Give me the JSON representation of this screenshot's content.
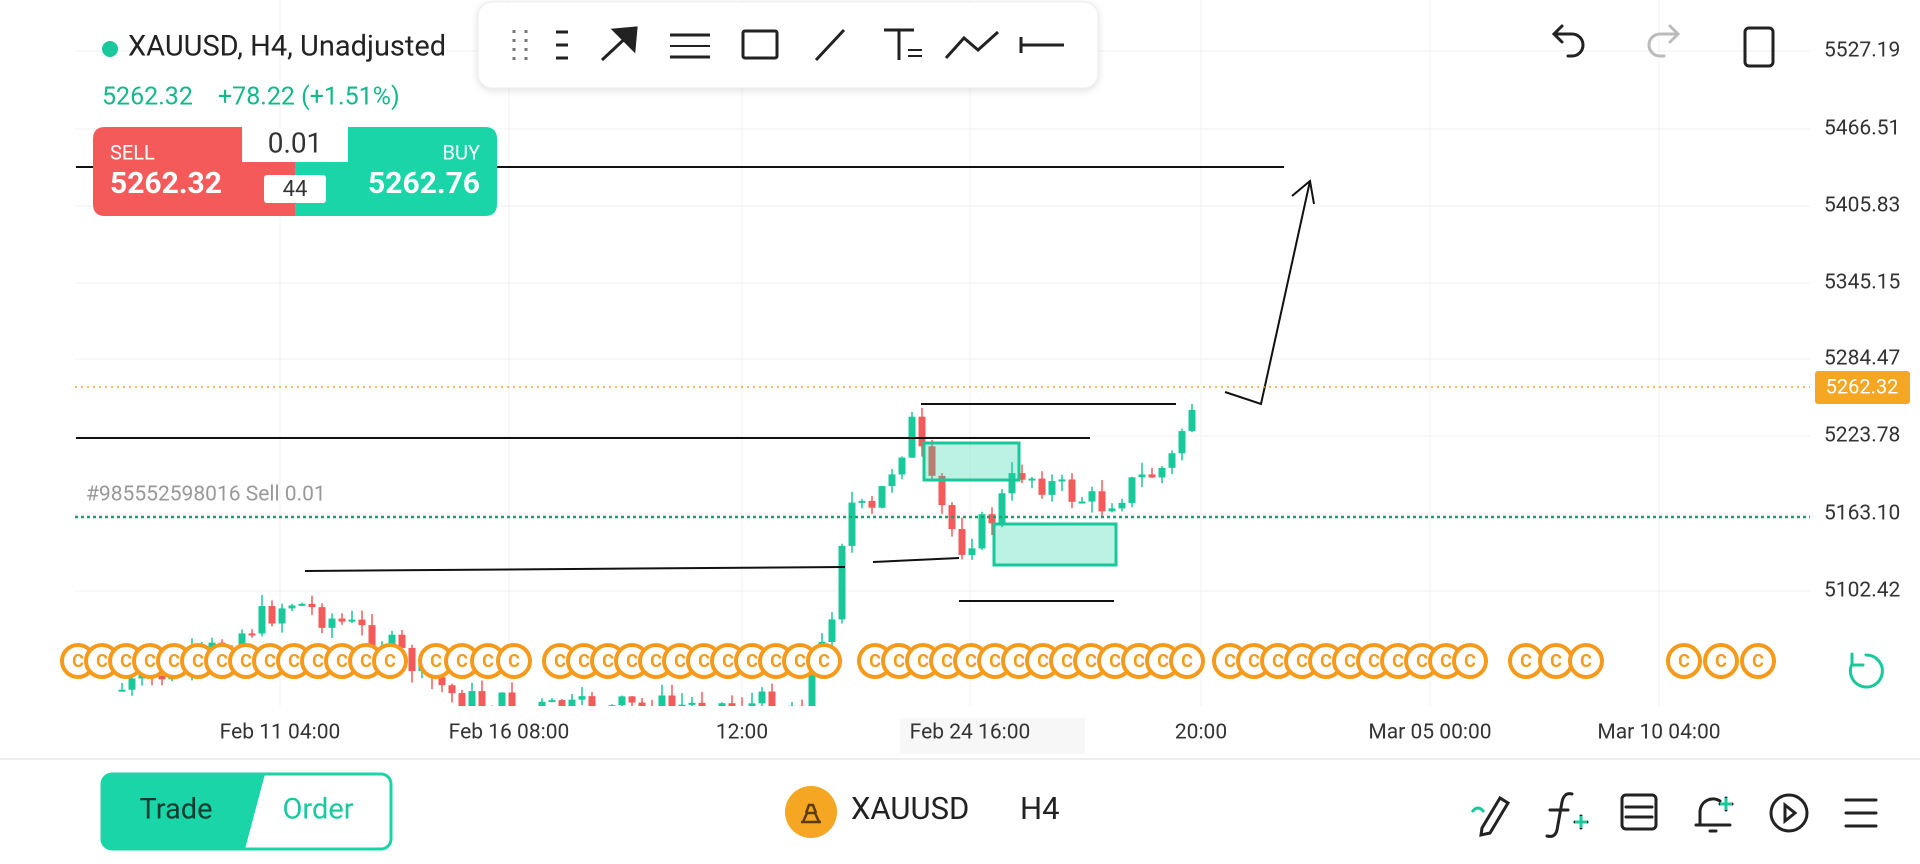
{
  "header": {
    "symbol_title": "XAUUSD, H4, Unadjusted",
    "last_price": "5262.32",
    "change": "+78.22 (+1.51%)"
  },
  "trade_panel": {
    "sell_label": "SELL",
    "sell_price": "5262.32",
    "buy_label": "BUY",
    "buy_price": "5262.76",
    "volume": "0.01",
    "spread": "44"
  },
  "price_axis": {
    "labels": [
      "5527.19",
      "5466.51",
      "5405.83",
      "5345.15",
      "5284.47",
      "5223.78",
      "5163.10",
      "5102.42"
    ],
    "current_price": "5262.32"
  },
  "time_axis": {
    "labels": [
      "Feb 11 04:00",
      "Feb 16 08:00",
      "12:00",
      "Feb 24 16:00",
      "20:00",
      "Mar 05 00:00",
      "Mar 10 04:00"
    ]
  },
  "order_line": {
    "label": "#985552598016 Sell 0.01"
  },
  "marker_label": "C",
  "footer": {
    "tabs": [
      "Trade",
      "Order"
    ],
    "symbol": "XAUUSD",
    "timeframe": "H4"
  }
}
